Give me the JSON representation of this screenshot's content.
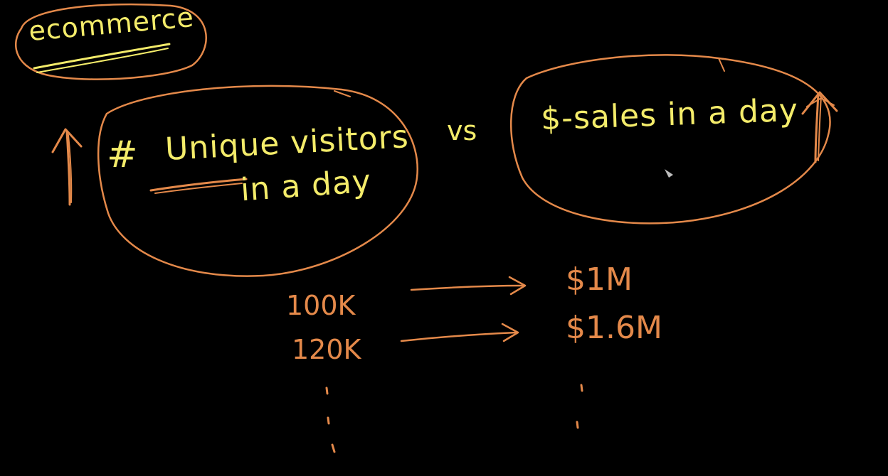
{
  "board": {
    "background": "#000000",
    "pen_colors": {
      "yellow": "#f4ec6a",
      "orange": "#e4894a"
    },
    "topic": "ecommerce",
    "left_bubble": {
      "hash": "#",
      "line1": "Unique visitors",
      "line2": "in a day"
    },
    "versus": "vs",
    "right_bubble": {
      "text": "$-sales in a day"
    },
    "visitor_values": [
      "100K",
      "120K"
    ],
    "sales_values": [
      "$1M",
      "$1.6M"
    ]
  }
}
